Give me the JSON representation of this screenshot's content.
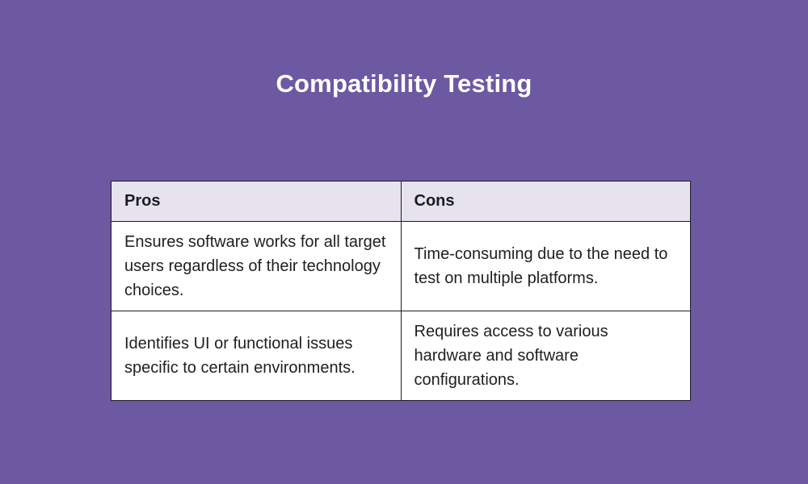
{
  "title": "Compatibility Testing",
  "colors": {
    "background": "#6C59A2",
    "header_bg": "#E6E3EF",
    "cell_bg": "#FFFFFF",
    "border": "#1D1A2B",
    "title_text": "#FFFFFF",
    "body_text": "#1F1F23"
  },
  "table": {
    "headers": [
      "Pros",
      "Cons"
    ],
    "rows": [
      [
        "Ensures software works for all target users regardless of their technology choices.",
        "Time-consuming due to the need to test on multiple platforms."
      ],
      [
        "Identifies UI or functional issues specific to certain environments.",
        "Requires access to various hardware and software configurations."
      ]
    ]
  }
}
